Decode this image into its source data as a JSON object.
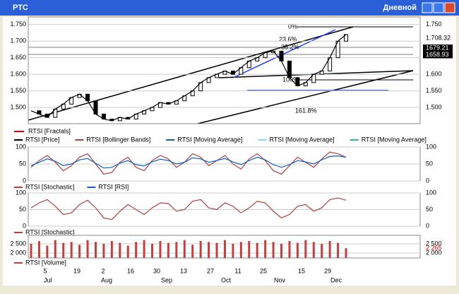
{
  "window": {
    "title": "РТС",
    "timeframe": "Дневной"
  },
  "price_panel": {
    "type": "line",
    "ylim": [
      1451,
      1773
    ],
    "yticks": [
      {
        "value": 1750,
        "label": "1.750"
      },
      {
        "value": 1700,
        "label": "1.700"
      },
      {
        "value": 1650,
        "label": "1.650"
      },
      {
        "value": 1600,
        "label": "1.600"
      },
      {
        "value": 1550,
        "label": "1.550"
      },
      {
        "value": 1500,
        "label": "1.500"
      }
    ],
    "right_labels": [
      {
        "value": 1750,
        "label": "1.750"
      },
      {
        "value": 1708.32,
        "label": "1.708.32"
      },
      {
        "value": 1679.21,
        "label": "1679.21"
      },
      {
        "value": 1658.93,
        "label": "1658.93"
      },
      {
        "value": 1600,
        "label": "1.600"
      },
      {
        "value": 1550,
        "label": "1.550"
      },
      {
        "value": 1500,
        "label": "1.500"
      }
    ],
    "fib_labels": [
      "0%",
      "23.6%",
      "38.2%",
      "100%",
      "161.8%"
    ],
    "legend": [
      "RTSI [Fractals]",
      "RTSI [Price]",
      "RTSI [Bollinger Bands]",
      "RTSI [Moving Average]",
      "RTSI [Moving Average]",
      "RTSI [Moving Average]"
    ],
    "colors": [
      "#e00000",
      "#000000",
      "#b04040",
      "#1060c0",
      "#80e0e0",
      "#20c080"
    ],
    "values": [
      1490,
      1480,
      1470,
      1495,
      1510,
      1530,
      1540,
      1520,
      1480,
      1465,
      1460,
      1470,
      1465,
      1480,
      1490,
      1500,
      1515,
      1510,
      1520,
      1535,
      1550,
      1575,
      1590,
      1600,
      1610,
      1600,
      1620,
      1640,
      1650,
      1665,
      1670,
      1640,
      1590,
      1565,
      1575,
      1600,
      1610,
      1650,
      1700,
      1720
    ]
  },
  "osc_panel": {
    "ylim": [
      0,
      100
    ],
    "yticks": [
      100,
      50,
      0
    ],
    "legend": [
      "RTSI [Stochastic]",
      "RTSI [RSI]"
    ],
    "colors": [
      "#b04040",
      "#1060c0"
    ],
    "series": [
      {
        "values": [
          40,
          60,
          75,
          55,
          30,
          45,
          70,
          80,
          50,
          20,
          25,
          55,
          70,
          40,
          30,
          60,
          75,
          65,
          40,
          55,
          80,
          70,
          45,
          60,
          75,
          50,
          35,
          65,
          80,
          60,
          30,
          20,
          45,
          70,
          55,
          40,
          65,
          85,
          80,
          70
        ]
      },
      {
        "values": [
          45,
          55,
          65,
          58,
          45,
          50,
          62,
          66,
          52,
          38,
          40,
          52,
          60,
          48,
          44,
          56,
          64,
          60,
          50,
          55,
          68,
          65,
          55,
          60,
          66,
          56,
          48,
          60,
          70,
          62,
          48,
          40,
          48,
          60,
          56,
          50,
          62,
          72,
          74,
          70
        ]
      }
    ]
  },
  "stoch_panel": {
    "ylim": [
      0,
      100
    ],
    "yticks": [
      100,
      50,
      0
    ],
    "legend": [
      "RTSI [Stochastic]"
    ],
    "colors": [
      "#b04040"
    ],
    "series": [
      {
        "values": [
          55,
          70,
          80,
          60,
          35,
          40,
          65,
          78,
          55,
          25,
          20,
          45,
          65,
          50,
          35,
          55,
          70,
          68,
          45,
          50,
          75,
          80,
          55,
          50,
          70,
          60,
          40,
          55,
          75,
          70,
          45,
          25,
          35,
          60,
          65,
          45,
          55,
          80,
          85,
          78
        ]
      }
    ]
  },
  "volume_panel": {
    "ylim": [
      1730,
      2960
    ],
    "yticks": [
      {
        "value": 2500,
        "label": "2 500"
      },
      {
        "value": 2000,
        "label": "2 000"
      }
    ],
    "right_labels": [
      {
        "value": 2500,
        "label": "2 500"
      },
      {
        "value": 2265,
        "label": "2 265"
      },
      {
        "value": 2000,
        "label": "2 000"
      }
    ],
    "legend": [
      "RTSI [Volume]"
    ],
    "color": "#c04040",
    "values": [
      2500,
      2650,
      2400,
      2700,
      2550,
      2600,
      2450,
      2700,
      2600,
      2500,
      2650,
      2550,
      2400,
      2600,
      2700,
      2500,
      2650,
      2550,
      2600,
      2700,
      2450,
      2650,
      2600,
      2550,
      2700,
      2500,
      2600,
      2650,
      2550,
      2700,
      2600,
      2500,
      2650,
      2550,
      2700,
      2600,
      2500,
      2650,
      2550,
      2265
    ]
  },
  "x_axis": {
    "days": [
      "5",
      "19",
      "2",
      "16",
      "30",
      "13",
      "27",
      "11",
      "25",
      "15",
      "29"
    ],
    "months": [
      "Jul",
      "Aug",
      "Sep",
      "Oct",
      "Nov",
      "Dec"
    ]
  }
}
